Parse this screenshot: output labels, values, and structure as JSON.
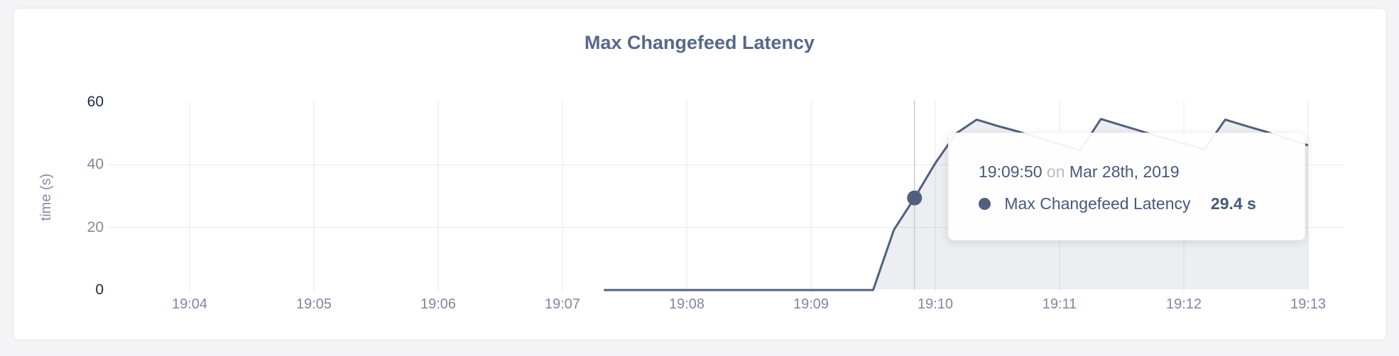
{
  "colors": {
    "page_bg": "#f4f4f6",
    "card_bg": "#ffffff",
    "card_border": "#e4e4e7",
    "title": "#56688a",
    "axis_label": "#7e88a0",
    "axis_label_strong": "#1d2945",
    "grid": "#e9e9ec",
    "crosshair": "#c9ccd3",
    "line": "#51607f",
    "fill": "rgba(81,96,127,0.11)",
    "tooltip_text": "#47597a",
    "tooltip_muted": "#b7bbc5"
  },
  "chart_data": {
    "type": "area",
    "title": "Max Changefeed Latency",
    "ylabel": "time (s)",
    "xlabel": "",
    "legend_position": "none",
    "grid": {
      "horizontal_at": [
        20,
        40
      ],
      "vertical_at_every_x_tick": true
    },
    "x_ticks": [
      "19:04",
      "19:05",
      "19:06",
      "19:07",
      "19:08",
      "19:09",
      "19:10",
      "19:11",
      "19:12",
      "19:13"
    ],
    "y_ticks": [
      0,
      20,
      40,
      60
    ],
    "y_major_ticks": [
      0,
      60
    ],
    "ylim": [
      0,
      60
    ],
    "series": [
      {
        "name": "Max Changefeed Latency",
        "points": [
          [
            "19:07:20",
            0
          ],
          [
            "19:07:30",
            0
          ],
          [
            "19:07:40",
            0
          ],
          [
            "19:07:50",
            0
          ],
          [
            "19:08:00",
            0
          ],
          [
            "19:08:10",
            0
          ],
          [
            "19:08:20",
            0
          ],
          [
            "19:08:30",
            0
          ],
          [
            "19:08:40",
            0
          ],
          [
            "19:08:50",
            0
          ],
          [
            "19:09:00",
            0
          ],
          [
            "19:09:10",
            0
          ],
          [
            "19:09:20",
            0
          ],
          [
            "19:09:30",
            0
          ],
          [
            "19:09:40",
            19.2
          ],
          [
            "19:09:50",
            29.4
          ],
          [
            "19:10:00",
            40.5
          ],
          [
            "19:10:10",
            50
          ],
          [
            "19:10:20",
            54.4
          ],
          [
            "19:10:30",
            52.4
          ],
          [
            "19:10:40",
            50.6
          ],
          [
            "19:10:50",
            48.6
          ],
          [
            "19:11:00",
            46.6
          ],
          [
            "19:11:10",
            44.6
          ],
          [
            "19:11:20",
            54.6
          ],
          [
            "19:11:30",
            52.6
          ],
          [
            "19:11:40",
            50.6
          ],
          [
            "19:11:50",
            48.6
          ],
          [
            "19:12:00",
            46.8
          ],
          [
            "19:12:10",
            44.9
          ],
          [
            "19:12:20",
            54.4
          ],
          [
            "19:12:30",
            52.4
          ],
          [
            "19:12:40",
            50.5
          ],
          [
            "19:12:50",
            48.3
          ],
          [
            "19:13:00",
            46.2
          ]
        ]
      }
    ],
    "hover": {
      "time": "19:09:50",
      "conjunction": "on",
      "date": "Mar 28th, 2019",
      "series_label": "Max Changefeed Latency",
      "value": 29.4,
      "unit": "s",
      "value_display": "29.4 s"
    }
  }
}
